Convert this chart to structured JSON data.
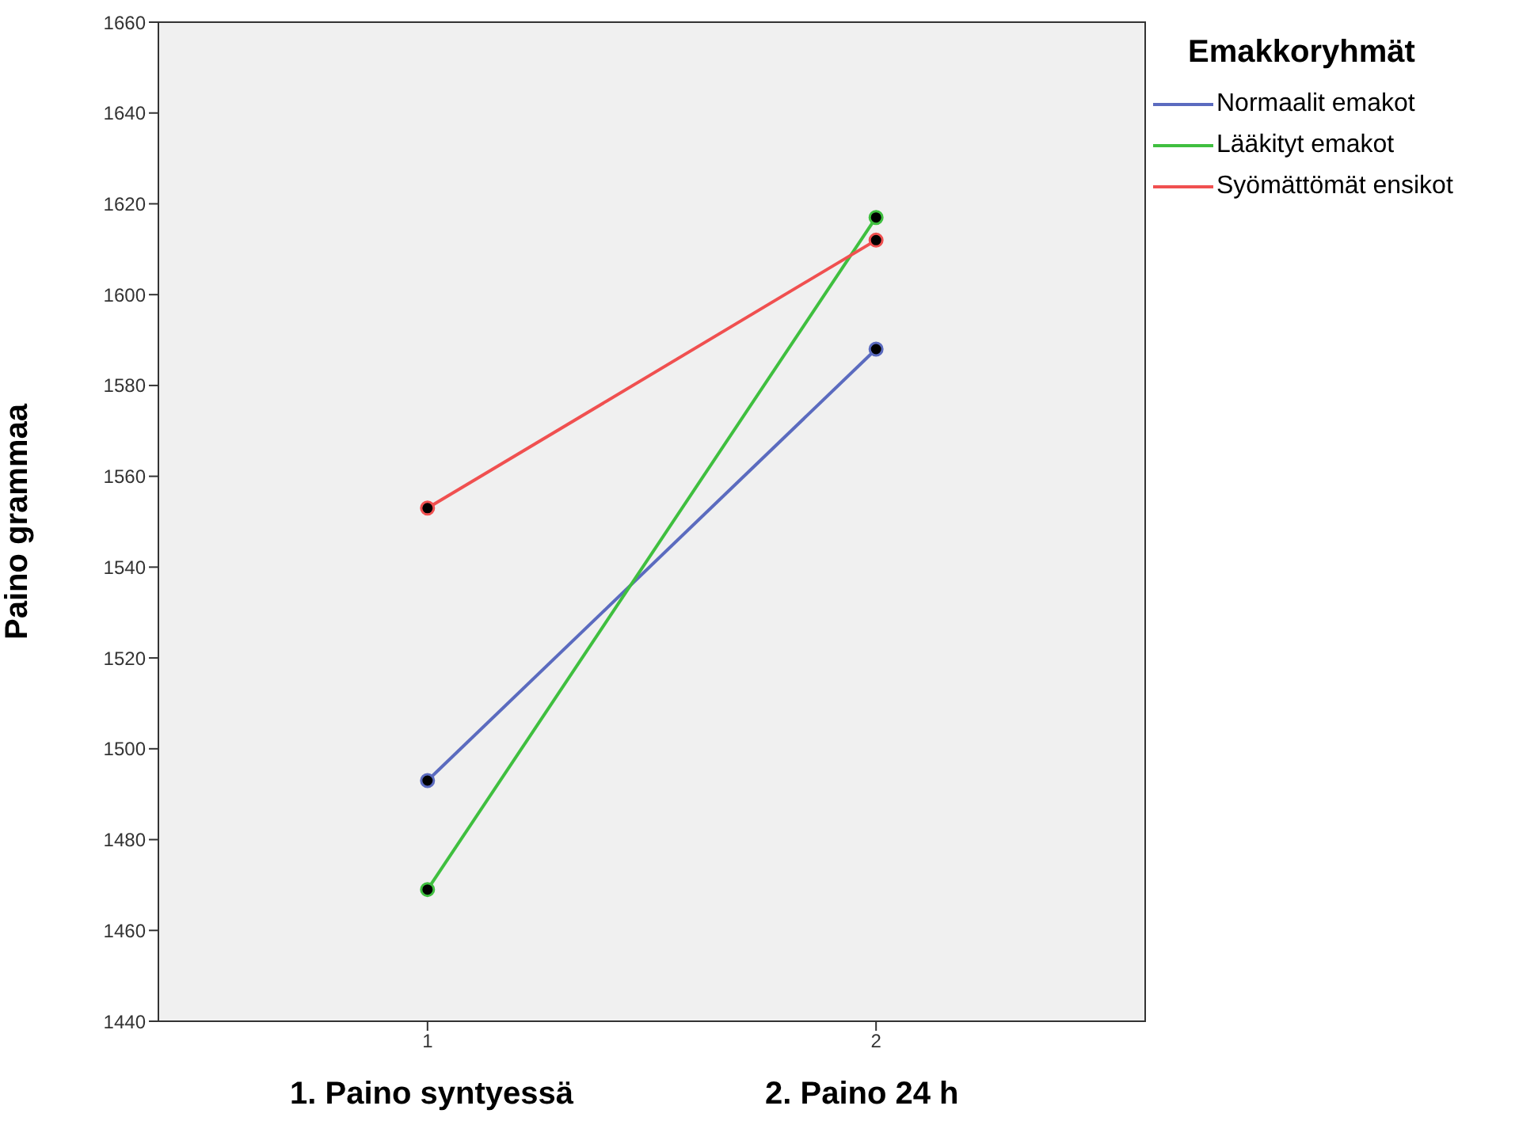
{
  "chart_data": {
    "type": "line",
    "ylabel": "Paino grammaa",
    "legend_title": "Emakkoryhmät",
    "x": [
      1,
      2
    ],
    "xlim": [
      0.4,
      2.6
    ],
    "xticks": [
      1,
      2
    ],
    "ylim": [
      1440,
      1660
    ],
    "yticks": [
      1440,
      1460,
      1480,
      1500,
      1520,
      1540,
      1560,
      1580,
      1600,
      1620,
      1640,
      1660
    ],
    "series": [
      {
        "name": "Normaalit emakot",
        "color": "#5b6bbf",
        "values": [
          1493,
          1588
        ]
      },
      {
        "name": "Lääkityt emakot",
        "color": "#3fbf3f",
        "values": [
          1469,
          1617
        ]
      },
      {
        "name": "Syömättömät ensikot",
        "color": "#f05050",
        "values": [
          1553,
          1612
        ]
      }
    ],
    "annotations": [
      "1. Paino syntyessä",
      "2. Paino 24 h"
    ],
    "grid": false,
    "legend": "top right",
    "marker": "circle",
    "line_style": "solid"
  }
}
